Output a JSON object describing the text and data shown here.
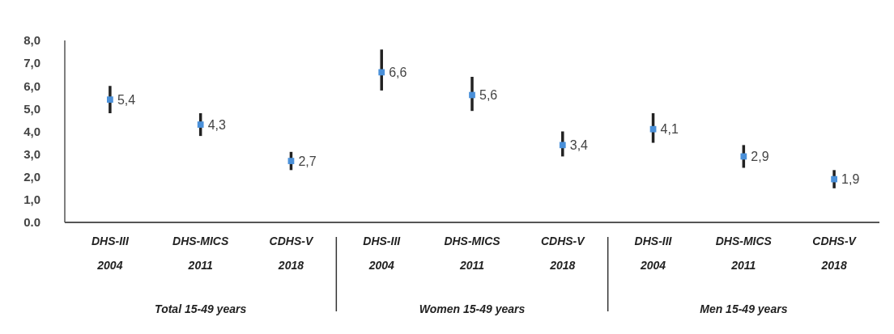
{
  "chart_data": {
    "type": "scatter",
    "categories": [
      "DHS-III 2004",
      "DHS-MICS 2011",
      "CDHS-V 2018",
      "DHS-III 2004",
      "DHS-MICS 2011",
      "CDHS-V 2018",
      "DHS-III 2004",
      "DHS-MICS 2011",
      "CDHS-V 2018"
    ],
    "values": [
      5.4,
      4.3,
      2.7,
      6.6,
      5.6,
      3.4,
      4.1,
      2.9,
      1.9
    ],
    "value_labels": [
      "5,4",
      "4,3",
      "2,7",
      "6,6",
      "5,6",
      "3,4",
      "4,1",
      "2,9",
      "1,9"
    ],
    "errors": [
      [
        4.8,
        6.0
      ],
      [
        3.8,
        4.8
      ],
      [
        2.3,
        3.1
      ],
      [
        5.8,
        7.6
      ],
      [
        4.9,
        6.4
      ],
      [
        2.9,
        4.0
      ],
      [
        3.5,
        4.8
      ],
      [
        2.4,
        3.4
      ],
      [
        1.5,
        2.3
      ]
    ],
    "color": "#4a90d9",
    "marker": "square",
    "ylim": [
      0,
      8
    ],
    "yticks": [
      {
        "value": 0,
        "label": "0.0"
      },
      {
        "value": 1,
        "label": "1,0"
      },
      {
        "value": 2,
        "label": "2,0"
      },
      {
        "value": 3,
        "label": "3,0"
      },
      {
        "value": 4,
        "label": "4,0"
      },
      {
        "value": 5,
        "label": "5,0"
      },
      {
        "value": 6,
        "label": "6,0"
      },
      {
        "value": 7,
        "label": "7,0"
      },
      {
        "value": 8,
        "label": "8,0"
      }
    ],
    "annotations": [
      "Total 15-49 years",
      "Women 15-49 years",
      "Men 15-49 years"
    ],
    "grid": false
  }
}
